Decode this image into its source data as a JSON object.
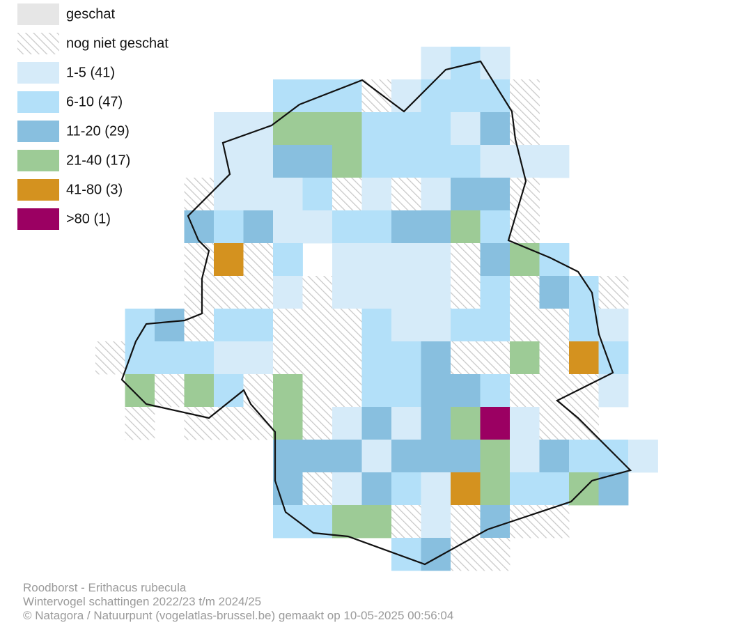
{
  "legend": [
    {
      "label": "geschat",
      "color": "#e6e6e6"
    },
    {
      "label": "nog niet geschat",
      "color": "#c8c8c8",
      "pattern": "hatch"
    },
    {
      "label": "1-5 (41)",
      "color": "#d6ebf9"
    },
    {
      "label": "6-10 (47)",
      "color": "#b3e0f9"
    },
    {
      "label": "11-20 (29)",
      "color": "#88bfdf"
    },
    {
      "label": "21-40 (17)",
      "color": "#9dcb96"
    },
    {
      "label": "41-80 (3)",
      "color": "#d4921f"
    },
    {
      "label": ">80 (1)",
      "color": "#9b0062"
    }
  ],
  "footer": [
    "Roodborst - Erithacus rubecula",
    "Wintervogel schattingen 2022/23 t/m 2024/25",
    "© Natagora / Natuurpunt (vogelatlas-brussel.be) gemaakt op 10-05-2025 00:56:04"
  ]
}
